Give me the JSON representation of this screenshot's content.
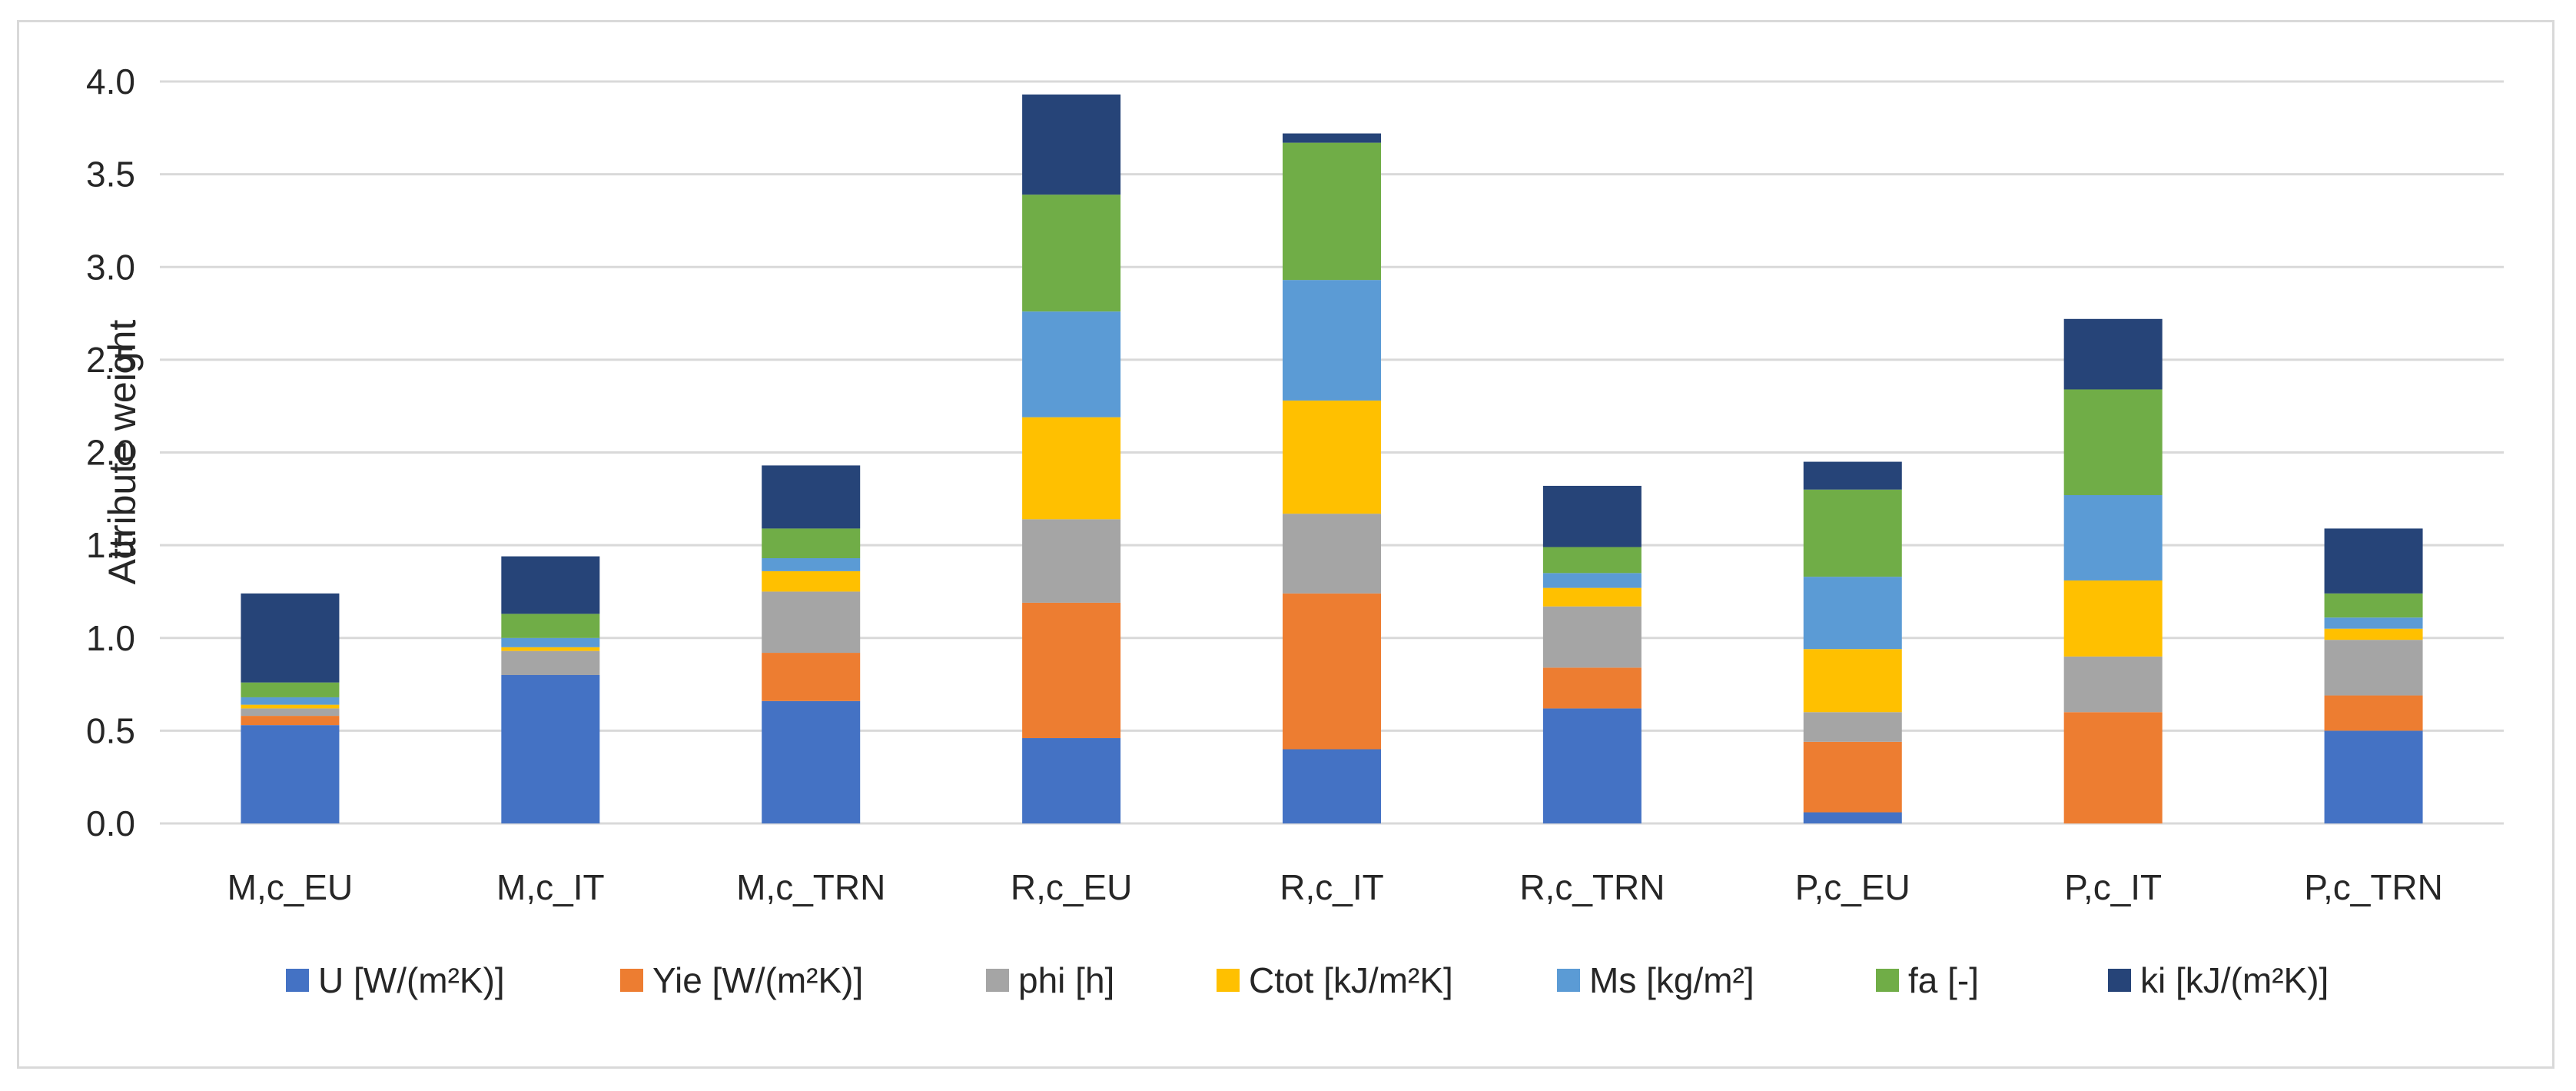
{
  "chart_data": {
    "type": "bar",
    "stacked": true,
    "title": "",
    "xlabel": "",
    "ylabel": "Attribute weight",
    "ylim": [
      0,
      4.0
    ],
    "ytick_step": 0.5,
    "grid": true,
    "legend_position": "bottom",
    "categories": [
      "M,c_EU",
      "M,c_IT",
      "M,c_TRN",
      "R,c_EU",
      "R,c_IT",
      "R,c_TRN",
      "P,c_EU",
      "P,c_IT",
      "P,c_TRN"
    ],
    "series": [
      {
        "name": "U [W/(m²K)]",
        "color": "#4472c4",
        "values": [
          0.53,
          0.8,
          0.66,
          0.46,
          0.4,
          0.62,
          0.06,
          0.0,
          0.5
        ]
      },
      {
        "name": "Yie [W/(m²K)]",
        "color": "#ed7d31",
        "values": [
          0.05,
          0.0,
          0.26,
          0.73,
          0.84,
          0.22,
          0.38,
          0.6,
          0.19
        ]
      },
      {
        "name": "phi [h]",
        "color": "#a5a5a5",
        "values": [
          0.04,
          0.13,
          0.33,
          0.45,
          0.43,
          0.33,
          0.16,
          0.3,
          0.3
        ]
      },
      {
        "name": "Ctot [kJ/m²K]",
        "color": "#ffc000",
        "values": [
          0.02,
          0.02,
          0.11,
          0.55,
          0.61,
          0.1,
          0.34,
          0.41,
          0.06
        ]
      },
      {
        "name": "Ms [kg/m²]",
        "color": "#5b9bd5",
        "values": [
          0.04,
          0.05,
          0.07,
          0.57,
          0.65,
          0.08,
          0.39,
          0.46,
          0.06
        ]
      },
      {
        "name": "fa [-]",
        "color": "#70ad47",
        "values": [
          0.08,
          0.13,
          0.16,
          0.63,
          0.74,
          0.14,
          0.47,
          0.57,
          0.13
        ]
      },
      {
        "name": "ki [kJ/(m²K)]",
        "color": "#264478",
        "values": [
          0.48,
          0.31,
          0.34,
          0.54,
          0.05,
          0.33,
          0.15,
          0.38,
          0.35
        ]
      }
    ]
  }
}
